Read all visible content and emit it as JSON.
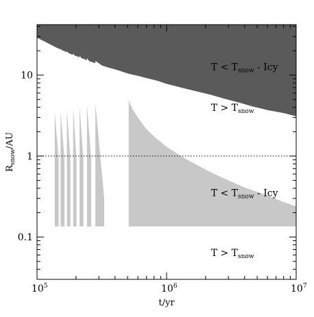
{
  "chart_data": {
    "type": "area",
    "title": "",
    "xlabel": {
      "base": "t/yr"
    },
    "ylabel": {
      "main": "R",
      "sub": "snow",
      "rest": "/AU"
    },
    "xscale": "log",
    "yscale": "log",
    "xlim": [
      100000,
      10000000
    ],
    "ylim": [
      0.03,
      42
    ],
    "grid": false,
    "legend": "none",
    "x_ticks": [
      {
        "value": 100000,
        "base": "10",
        "exp": "5"
      },
      {
        "value": 1000000,
        "base": "10",
        "exp": "6"
      },
      {
        "value": 10000000,
        "base": "10",
        "exp": "7"
      }
    ],
    "y_ticks": [
      {
        "value": 0.1,
        "label": "0.1"
      },
      {
        "value": 1,
        "label": "1"
      },
      {
        "value": 10,
        "label": "10"
      }
    ],
    "reference_line": {
      "y": 1,
      "style": "dotted"
    },
    "colors": {
      "outer_icy": "#5a5a5a",
      "inner_icy": "#c8c8c8",
      "background": "#ffffff",
      "axes": "#000000"
    },
    "series": [
      {
        "key": "outer_icy_boundary",
        "x": [
          100000,
          120000,
          140000,
          160000,
          185000,
          215000,
          250000,
          300000,
          350000,
          420000,
          500000,
          520000,
          600000,
          700000,
          850000,
          1000000,
          1300000,
          1700000,
          2200000,
          2800000,
          3600000,
          4600000,
          6000000,
          8000000,
          10000000
        ],
        "y": [
          29,
          25,
          22,
          20,
          18,
          16.5,
          15,
          13.5,
          12.5,
          11.5,
          10.5,
          10.3,
          9.8,
          9.2,
          8.5,
          7.8,
          7.0,
          6.3,
          5.7,
          5.1,
          4.6,
          4.1,
          3.7,
          3.4,
          3.1
        ]
      },
      {
        "key": "inner_icy_boundary",
        "x": [
          510000,
          550000,
          600000,
          650000,
          700000,
          800000,
          900000,
          1000000,
          1200000,
          1500000,
          2000000,
          2500000,
          3000000,
          4000000,
          5000000,
          6500000,
          8000000,
          10000000
        ],
        "y": [
          4.9,
          3.7,
          3.0,
          2.5,
          2.15,
          1.75,
          1.5,
          1.3,
          1.08,
          0.87,
          0.68,
          0.57,
          0.5,
          0.41,
          0.36,
          0.31,
          0.27,
          0.24
        ]
      }
    ],
    "inner_icy_floor": 0.135,
    "inner_icy_spikes": [
      {
        "start": 137000,
        "peak": 3.5,
        "end": 147000
      },
      {
        "start": 152000,
        "peak": 3.6,
        "end": 163000
      },
      {
        "start": 170000,
        "peak": 3.8,
        "end": 181000
      },
      {
        "start": 190000,
        "peak": 3.9,
        "end": 202000
      },
      {
        "start": 213000,
        "peak": 4.1,
        "end": 228000
      },
      {
        "start": 243000,
        "peak": 4.3,
        "end": 262000
      },
      {
        "start": 282000,
        "peak": 4.5,
        "end": 330000
      }
    ],
    "annotations": [
      {
        "key": "upper_icy",
        "main": "T < T",
        "sub": "snow",
        "rest": " - Icy",
        "x": 2200000,
        "y": 11.5
      },
      {
        "key": "upper_warm",
        "main": "T > T",
        "sub": "snow",
        "rest": "",
        "x": 2200000,
        "y": 3.6
      },
      {
        "key": "lower_icy",
        "main": "T < T",
        "sub": "snow",
        "rest": " - Icy",
        "x": 2200000,
        "y": 0.32
      },
      {
        "key": "lower_warm",
        "main": "T > T",
        "sub": "snow",
        "rest": "",
        "x": 2200000,
        "y": 0.058
      }
    ]
  }
}
